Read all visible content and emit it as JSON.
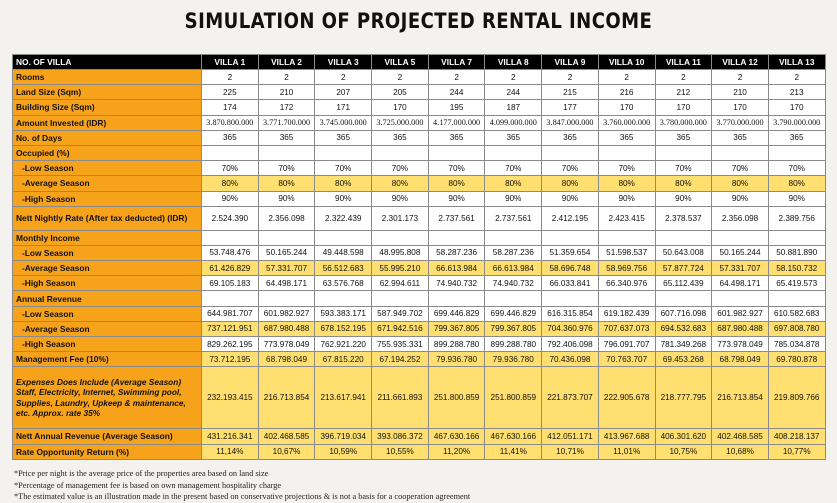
{
  "title": "SIMULATION OF PROJECTED RENTAL INCOME",
  "header": {
    "label": "NO. OF VILLA",
    "villas": [
      "VILLA 1",
      "VILLA 2",
      "VILLA 3",
      "VILLA 5",
      "VILLA 7",
      "VILLA 8",
      "VILLA 9",
      "VILLA 10",
      "VILLA 11",
      "VILLA 12",
      "VILLA 13"
    ]
  },
  "rows": [
    {
      "label": "Rooms",
      "style": "",
      "values": [
        "2",
        "2",
        "2",
        "2",
        "2",
        "2",
        "2",
        "2",
        "2",
        "2",
        "2"
      ]
    },
    {
      "label": "Land Size (Sqm)",
      "style": "",
      "values": [
        "225",
        "210",
        "207",
        "205",
        "244",
        "244",
        "215",
        "216",
        "212",
        "210",
        "213"
      ]
    },
    {
      "label": "Building Size (Sqm)",
      "style": "",
      "values": [
        "174",
        "172",
        "171",
        "170",
        "195",
        "187",
        "177",
        "170",
        "170",
        "170",
        "170"
      ]
    },
    {
      "label": "Amount Invested (IDR)",
      "style": "serif",
      "values": [
        "3.870.800.000",
        "3.771.700.000",
        "3.745.000.000",
        "3.725.000.000",
        "4.177.000.000",
        "4.099.000.000",
        "3.847.000.000",
        "3.760.000.000",
        "3.780.000.000",
        "3.770.000.000",
        "3.790.000.000"
      ]
    },
    {
      "label": "No. of Days",
      "style": "",
      "values": [
        "365",
        "365",
        "365",
        "365",
        "365",
        "365",
        "365",
        "365",
        "365",
        "365",
        "365"
      ]
    },
    {
      "label": "Occupied (%)",
      "style": "section",
      "values": [
        "",
        "",
        "",
        "",
        "",
        "",
        "",
        "",
        "",
        "",
        ""
      ]
    },
    {
      "label": "-Low Season",
      "style": "sub",
      "values": [
        "70%",
        "70%",
        "70%",
        "70%",
        "70%",
        "70%",
        "70%",
        "70%",
        "70%",
        "70%",
        "70%"
      ]
    },
    {
      "label": "-Average Season",
      "style": "sub yel",
      "values": [
        "80%",
        "80%",
        "80%",
        "80%",
        "80%",
        "80%",
        "80%",
        "80%",
        "80%",
        "80%",
        "80%"
      ]
    },
    {
      "label": "-High Season",
      "style": "sub",
      "values": [
        "90%",
        "90%",
        "90%",
        "90%",
        "90%",
        "90%",
        "90%",
        "90%",
        "90%",
        "90%",
        "90%"
      ]
    },
    {
      "label": "Nett Nightly Rate (After tax deducted) (IDR)",
      "style": "tall",
      "values": [
        "2.524.390",
        "2.356.098",
        "2.322.439",
        "2.301.173",
        "2.737.561",
        "2.737.561",
        "2.412.195",
        "2.423.415",
        "2.378.537",
        "2.356.098",
        "2.389.756"
      ]
    },
    {
      "label": "Monthly Income",
      "style": "section",
      "values": [
        "",
        "",
        "",
        "",
        "",
        "",
        "",
        "",
        "",
        "",
        ""
      ]
    },
    {
      "label": "-Low Season",
      "style": "sub",
      "values": [
        "53.748.476",
        "50.165.244",
        "49.448.598",
        "48.995.808",
        "58.287.236",
        "58.287.236",
        "51.359.654",
        "51.598.537",
        "50.643.008",
        "50.165.244",
        "50.881.890"
      ]
    },
    {
      "label": "-Average Season",
      "style": "sub yel",
      "values": [
        "61.426.829",
        "57.331.707",
        "56.512.683",
        "55.995.210",
        "66.613.984",
        "66.613.984",
        "58.696.748",
        "58.969.756",
        "57.877.724",
        "57.331.707",
        "58.150.732"
      ]
    },
    {
      "label": "-High Season",
      "style": "sub",
      "values": [
        "69.105.183",
        "64.498.171",
        "63.576.768",
        "62.994.611",
        "74.940.732",
        "74.940.732",
        "66.033.841",
        "66.340.976",
        "65.112.439",
        "64.498.171",
        "65.419.573"
      ]
    },
    {
      "label": "Annual Revenue",
      "style": "section",
      "values": [
        "",
        "",
        "",
        "",
        "",
        "",
        "",
        "",
        "",
        "",
        ""
      ]
    },
    {
      "label": "-Low Season",
      "style": "sub",
      "values": [
        "644.981.707",
        "601.982.927",
        "593.383.171",
        "587.949.702",
        "699.446.829",
        "699.446.829",
        "616.315.854",
        "619.182.439",
        "607.716.098",
        "601.982.927",
        "610.582.683"
      ]
    },
    {
      "label": "-Average Season",
      "style": "sub yel",
      "values": [
        "737.121.951",
        "687.980.488",
        "678.152.195",
        "671.942.516",
        "799.367.805",
        "799.367.805",
        "704.360.976",
        "707.637.073",
        "694.532.683",
        "687.980.488",
        "697.808.780"
      ]
    },
    {
      "label": "-High Season",
      "style": "sub",
      "values": [
        "829.262.195",
        "773.978.049",
        "762.921.220",
        "755.935.331",
        "899.288.780",
        "899.288.780",
        "792.406.098",
        "796.091.707",
        "781.349.268",
        "773.978.049",
        "785.034.878"
      ]
    },
    {
      "label": "Management Fee (10%)",
      "style": "yel",
      "values": [
        "73.712.195",
        "68.798.049",
        "67.815.220",
        "67.194.252",
        "79.936.780",
        "79.936.780",
        "70.436.098",
        "70.763.707",
        "69.453.268",
        "68.798.049",
        "69.780.878"
      ]
    }
  ],
  "expenses": {
    "label_line1": "Expenses Does Include (Average Season)",
    "label_rest": "Staff, Electricity, Internet, Swimming pool, Supplies, Laundry, Upkeep & maintenance, etc. Approx. rate 35%",
    "values": [
      "232.193.415",
      "216.713.854",
      "213.617.941",
      "211.661.893",
      "251.800.859",
      "251.800.859",
      "221.873.707",
      "222.905.678",
      "218.777.795",
      "216.713.854",
      "219.809.766"
    ]
  },
  "tail_rows": [
    {
      "label": "Nett Annual Revenue (Average Season)",
      "style": "yel",
      "values": [
        "431.216.341",
        "402.468.585",
        "396.719.034",
        "393.086.372",
        "467.630.166",
        "467.630.166",
        "412.051.171",
        "413.967.688",
        "406.301.620",
        "402.468.585",
        "408.218.137"
      ]
    },
    {
      "label": "Rate Opportunity Return (%)",
      "style": "yel",
      "values": [
        "11,14%",
        "10,67%",
        "10,59%",
        "10,55%",
        "11,20%",
        "11,41%",
        "10,71%",
        "11,01%",
        "10,75%",
        "10,68%",
        "10,77%"
      ]
    }
  ],
  "notes": [
    "*Price per night is the average price of the properties area based on land size",
    "*Percentage of management fee is based on own management hospitality charge",
    "*The estimated value is an illustration made in the present based on conservative projections & is not a basis for a cooperation agreement"
  ]
}
